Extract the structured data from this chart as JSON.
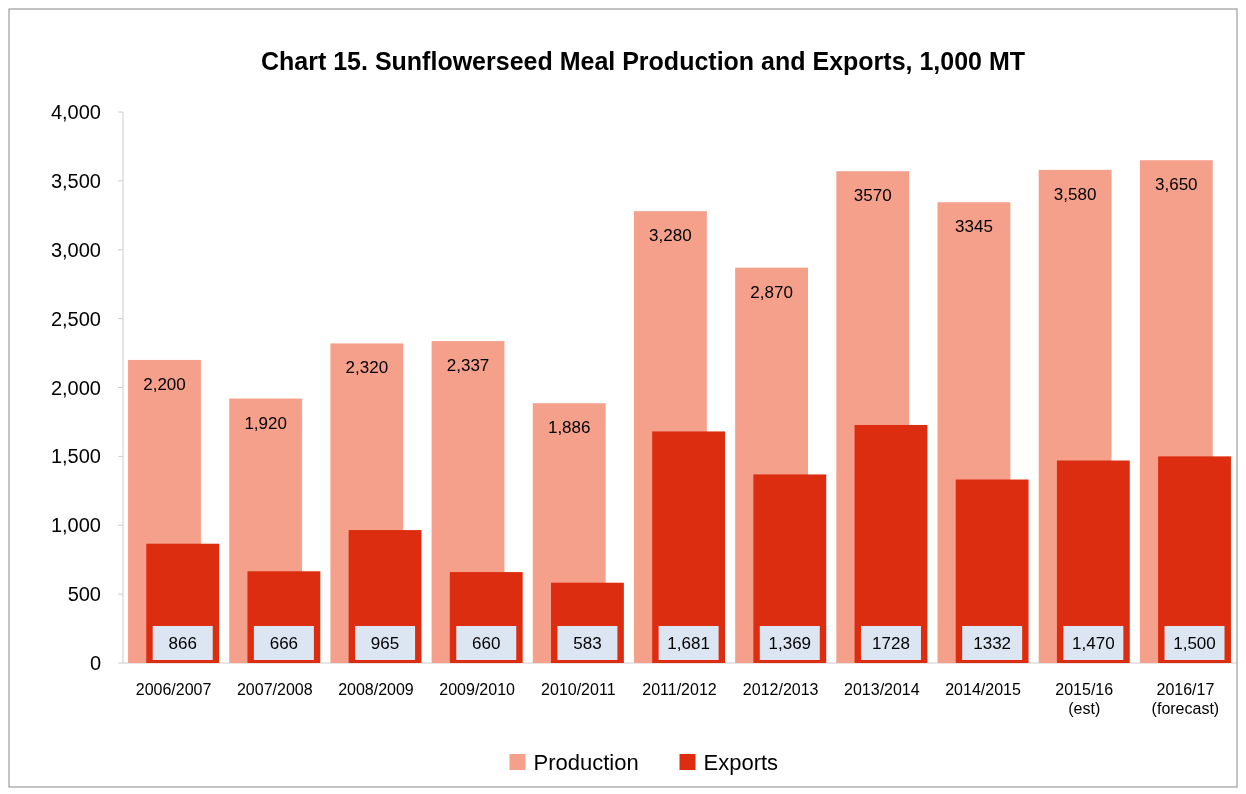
{
  "chart_data": {
    "type": "bar",
    "title": "Chart 15. Sunflowerseed Meal Production and Exports, 1,000 MT",
    "categories": [
      "2006/2007",
      "2007/2008",
      "2008/2009",
      "2009/2010",
      "2010/2011",
      "2011/2012",
      "2012/2013",
      "2013/2014",
      "2014/2015",
      "2015/16\n(est)",
      "2016/17\n(forecast)"
    ],
    "series": [
      {
        "name": "Production",
        "color": "#f5a08b",
        "values": [
          2200,
          1920,
          2320,
          2337,
          1886,
          3280,
          2870,
          3570,
          3345,
          3580,
          3650
        ],
        "value_labels": [
          "2,200",
          "1,920",
          "2,320",
          "2,337",
          "1,886",
          "3,280",
          "2,870",
          "3570",
          "3345",
          "3,580",
          "3,650"
        ]
      },
      {
        "name": "Exports",
        "color": "#dd2d10",
        "values": [
          866,
          666,
          965,
          660,
          583,
          1681,
          1369,
          1728,
          1332,
          1470,
          1500
        ],
        "value_labels": [
          "866",
          "666",
          "965",
          "660",
          "583",
          "1,681",
          "1,369",
          "1728",
          "1332",
          "1,470",
          "1,500"
        ]
      }
    ],
    "ylim": [
      0,
      4000
    ],
    "yticks": [
      {
        "value": 0,
        "label": "0"
      },
      {
        "value": 500,
        "label": "500"
      },
      {
        "value": 1000,
        "label": "1,000"
      },
      {
        "value": 1500,
        "label": "1,500"
      },
      {
        "value": 2000,
        "label": "2,000"
      },
      {
        "value": 2500,
        "label": "2,500"
      },
      {
        "value": 3000,
        "label": "3,000"
      },
      {
        "value": 3500,
        "label": "3,500"
      },
      {
        "value": 4000,
        "label": "4,000"
      }
    ],
    "legend": "bottom"
  }
}
